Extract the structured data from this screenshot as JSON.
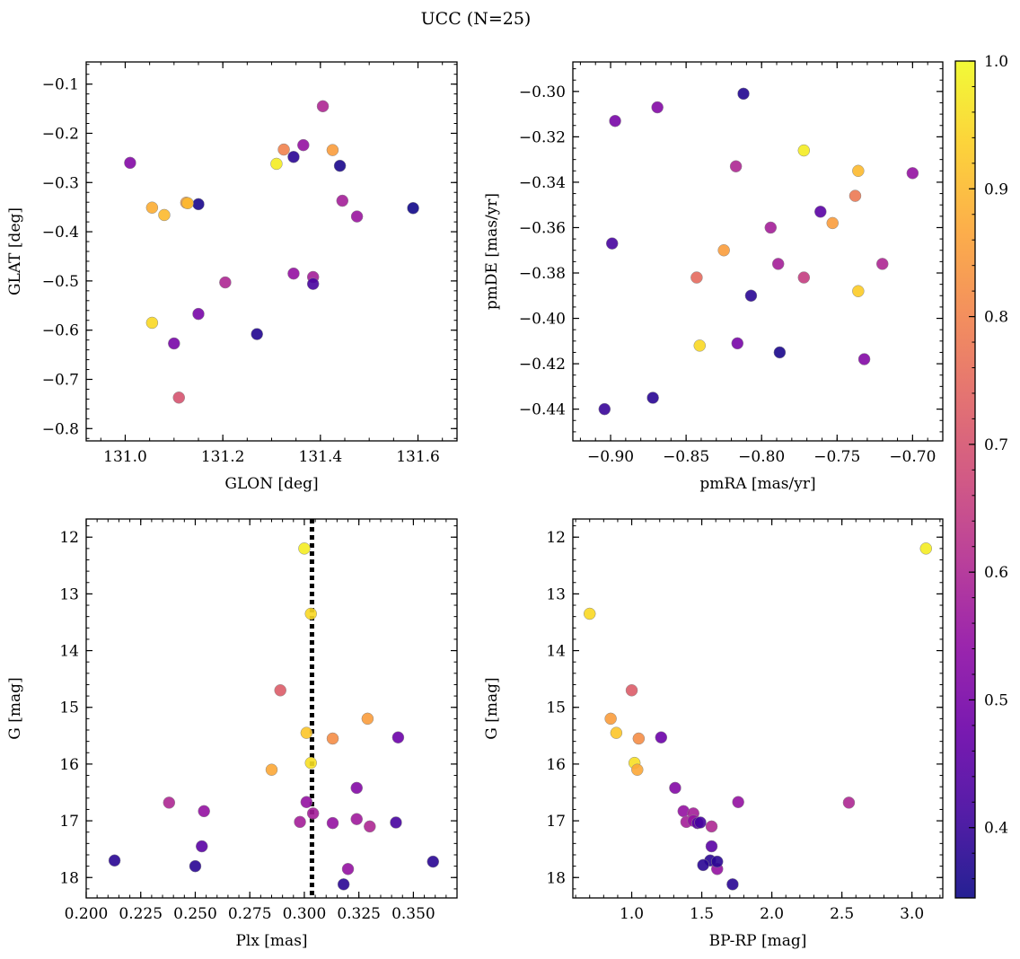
{
  "title": "UCC (N=25)",
  "colorbar": {
    "min": 0.345,
    "max": 1.0,
    "ticks": [
      0.4,
      0.5,
      0.6,
      0.7,
      0.8,
      0.9,
      1.0
    ],
    "tick_labels": [
      "0.4",
      "0.5",
      "0.6",
      "0.7",
      "0.8",
      "0.9",
      "1.0"
    ],
    "colormap": "plasma"
  },
  "chart_data": [
    {
      "type": "scatter",
      "xlabel": "GLON [deg]",
      "ylabel": "GLAT [deg]",
      "xlim": [
        130.92,
        131.68
      ],
      "ylim": [
        -0.825,
        -0.055
      ],
      "y_inverted": false,
      "xticks": [
        131.0,
        131.2,
        131.4,
        131.6
      ],
      "xtick_labels": [
        "131.0",
        "131.2",
        "131.4",
        "131.6"
      ],
      "yticks": [
        -0.8,
        -0.7,
        -0.6,
        -0.5,
        -0.4,
        -0.3,
        -0.2,
        -0.1
      ],
      "ytick_labels": [
        "−0.8",
        "−0.7",
        "−0.6",
        "−0.5",
        "−0.4",
        "−0.3",
        "−0.2",
        "−0.1"
      ],
      "points": [
        {
          "x": 131.01,
          "y": -0.26,
          "c": 0.52
        },
        {
          "x": 131.055,
          "y": -0.351,
          "c": 0.88
        },
        {
          "x": 131.08,
          "y": -0.366,
          "c": 0.9
        },
        {
          "x": 131.125,
          "y": -0.341,
          "c": 0.85
        },
        {
          "x": 131.15,
          "y": -0.344,
          "c": 0.36
        },
        {
          "x": 131.055,
          "y": -0.585,
          "c": 0.95
        },
        {
          "x": 131.1,
          "y": -0.627,
          "c": 0.5
        },
        {
          "x": 131.15,
          "y": -0.567,
          "c": 0.5
        },
        {
          "x": 131.11,
          "y": -0.737,
          "c": 0.7
        },
        {
          "x": 131.205,
          "y": -0.503,
          "c": 0.6
        },
        {
          "x": 131.27,
          "y": -0.608,
          "c": 0.37
        },
        {
          "x": 131.31,
          "y": -0.262,
          "c": 0.98
        },
        {
          "x": 131.325,
          "y": -0.233,
          "c": 0.8
        },
        {
          "x": 131.345,
          "y": -0.248,
          "c": 0.38
        },
        {
          "x": 131.365,
          "y": -0.224,
          "c": 0.55
        },
        {
          "x": 131.345,
          "y": -0.485,
          "c": 0.55
        },
        {
          "x": 131.385,
          "y": -0.492,
          "c": 0.58
        },
        {
          "x": 131.385,
          "y": -0.506,
          "c": 0.42
        },
        {
          "x": 131.405,
          "y": -0.145,
          "c": 0.6
        },
        {
          "x": 131.425,
          "y": -0.234,
          "c": 0.85
        },
        {
          "x": 131.44,
          "y": -0.266,
          "c": 0.36
        },
        {
          "x": 131.445,
          "y": -0.337,
          "c": 0.58
        },
        {
          "x": 131.475,
          "y": -0.369,
          "c": 0.56
        },
        {
          "x": 131.59,
          "y": -0.352,
          "c": 0.35
        },
        {
          "x": 131.128,
          "y": -0.342,
          "c": 0.9
        }
      ]
    },
    {
      "type": "scatter",
      "xlabel": "pmRA [mas/yr]",
      "ylabel": "pmDE [mas/yr]",
      "xlim": [
        -0.925,
        -0.68
      ],
      "ylim": [
        -0.454,
        -0.287
      ],
      "y_inverted": false,
      "xticks": [
        -0.9,
        -0.85,
        -0.8,
        -0.75,
        -0.7
      ],
      "xtick_labels": [
        "−0.90",
        "−0.85",
        "−0.80",
        "−0.75",
        "−0.70"
      ],
      "yticks": [
        -0.44,
        -0.42,
        -0.4,
        -0.38,
        -0.36,
        -0.34,
        -0.32,
        -0.3
      ],
      "ytick_labels": [
        "−0.44",
        "−0.42",
        "−0.40",
        "−0.38",
        "−0.36",
        "−0.34",
        "−0.32",
        "−0.30"
      ],
      "points": [
        {
          "x": -0.812,
          "y": -0.301,
          "c": 0.37
        },
        {
          "x": -0.897,
          "y": -0.313,
          "c": 0.5
        },
        {
          "x": -0.869,
          "y": -0.307,
          "c": 0.52
        },
        {
          "x": -0.772,
          "y": -0.326,
          "c": 0.98
        },
        {
          "x": -0.736,
          "y": -0.335,
          "c": 0.9
        },
        {
          "x": -0.7,
          "y": -0.336,
          "c": 0.55
        },
        {
          "x": -0.817,
          "y": -0.333,
          "c": 0.6
        },
        {
          "x": -0.738,
          "y": -0.346,
          "c": 0.78
        },
        {
          "x": -0.761,
          "y": -0.353,
          "c": 0.45
        },
        {
          "x": -0.753,
          "y": -0.358,
          "c": 0.85
        },
        {
          "x": -0.794,
          "y": -0.36,
          "c": 0.58
        },
        {
          "x": -0.899,
          "y": -0.367,
          "c": 0.42
        },
        {
          "x": -0.825,
          "y": -0.37,
          "c": 0.85
        },
        {
          "x": -0.789,
          "y": -0.376,
          "c": 0.58
        },
        {
          "x": -0.72,
          "y": -0.376,
          "c": 0.6
        },
        {
          "x": -0.843,
          "y": -0.382,
          "c": 0.75
        },
        {
          "x": -0.772,
          "y": -0.382,
          "c": 0.65
        },
        {
          "x": -0.736,
          "y": -0.388,
          "c": 0.93
        },
        {
          "x": -0.807,
          "y": -0.39,
          "c": 0.38
        },
        {
          "x": -0.841,
          "y": -0.412,
          "c": 0.95
        },
        {
          "x": -0.816,
          "y": -0.411,
          "c": 0.5
        },
        {
          "x": -0.788,
          "y": -0.415,
          "c": 0.36
        },
        {
          "x": -0.732,
          "y": -0.418,
          "c": 0.52
        },
        {
          "x": -0.872,
          "y": -0.435,
          "c": 0.38
        },
        {
          "x": -0.904,
          "y": -0.44,
          "c": 0.4
        }
      ]
    },
    {
      "type": "scatter",
      "xlabel": "Plx [mas]",
      "ylabel": "G [mag]",
      "xlim": [
        0.2,
        0.37
      ],
      "ylim": [
        18.36,
        11.68
      ],
      "y_inverted": true,
      "xticks": [
        0.2,
        0.225,
        0.25,
        0.275,
        0.3,
        0.325,
        0.35
      ],
      "xtick_labels": [
        "0.200",
        "0.225",
        "0.250",
        "0.275",
        "0.300",
        "0.325",
        "0.350"
      ],
      "yticks": [
        12,
        13,
        14,
        15,
        16,
        17,
        18
      ],
      "ytick_labels": [
        "12",
        "13",
        "14",
        "15",
        "16",
        "17",
        "18"
      ],
      "vline": {
        "x": 0.3035,
        "style": "dotted"
      },
      "points": [
        {
          "x": 0.3,
          "y": 12.2,
          "c": 0.98
        },
        {
          "x": 0.303,
          "y": 13.35,
          "c": 0.95
        },
        {
          "x": 0.289,
          "y": 14.7,
          "c": 0.72
        },
        {
          "x": 0.329,
          "y": 15.2,
          "c": 0.85
        },
        {
          "x": 0.301,
          "y": 15.45,
          "c": 0.92
        },
        {
          "x": 0.313,
          "y": 15.55,
          "c": 0.82
        },
        {
          "x": 0.343,
          "y": 15.53,
          "c": 0.48
        },
        {
          "x": 0.303,
          "y": 15.98,
          "c": 0.96
        },
        {
          "x": 0.285,
          "y": 16.1,
          "c": 0.87
        },
        {
          "x": 0.324,
          "y": 16.42,
          "c": 0.52
        },
        {
          "x": 0.238,
          "y": 16.68,
          "c": 0.6
        },
        {
          "x": 0.301,
          "y": 16.67,
          "c": 0.55
        },
        {
          "x": 0.254,
          "y": 16.83,
          "c": 0.55
        },
        {
          "x": 0.304,
          "y": 16.87,
          "c": 0.58
        },
        {
          "x": 0.298,
          "y": 17.02,
          "c": 0.58
        },
        {
          "x": 0.313,
          "y": 17.04,
          "c": 0.55
        },
        {
          "x": 0.324,
          "y": 16.97,
          "c": 0.57
        },
        {
          "x": 0.33,
          "y": 17.1,
          "c": 0.6
        },
        {
          "x": 0.342,
          "y": 17.03,
          "c": 0.42
        },
        {
          "x": 0.253,
          "y": 17.45,
          "c": 0.45
        },
        {
          "x": 0.213,
          "y": 17.7,
          "c": 0.38
        },
        {
          "x": 0.25,
          "y": 17.8,
          "c": 0.38
        },
        {
          "x": 0.32,
          "y": 17.85,
          "c": 0.55
        },
        {
          "x": 0.359,
          "y": 17.72,
          "c": 0.38
        },
        {
          "x": 0.318,
          "y": 18.12,
          "c": 0.38
        }
      ]
    },
    {
      "type": "scatter",
      "xlabel": "BP-RP [mag]",
      "ylabel": "G [mag]",
      "xlim": [
        0.58,
        3.22
      ],
      "ylim": [
        18.36,
        11.68
      ],
      "y_inverted": true,
      "xticks": [
        1.0,
        1.5,
        2.0,
        2.5,
        3.0
      ],
      "xtick_labels": [
        "1.0",
        "1.5",
        "2.0",
        "2.5",
        "3.0"
      ],
      "yticks": [
        12,
        13,
        14,
        15,
        16,
        17,
        18
      ],
      "ytick_labels": [
        "12",
        "13",
        "14",
        "15",
        "16",
        "17",
        "18"
      ],
      "points": [
        {
          "x": 3.1,
          "y": 12.2,
          "c": 0.98
        },
        {
          "x": 0.7,
          "y": 13.35,
          "c": 0.95
        },
        {
          "x": 1.0,
          "y": 14.7,
          "c": 0.72
        },
        {
          "x": 0.85,
          "y": 15.2,
          "c": 0.85
        },
        {
          "x": 0.89,
          "y": 15.45,
          "c": 0.92
        },
        {
          "x": 1.05,
          "y": 15.55,
          "c": 0.82
        },
        {
          "x": 1.21,
          "y": 15.53,
          "c": 0.48
        },
        {
          "x": 1.02,
          "y": 15.98,
          "c": 0.96
        },
        {
          "x": 1.04,
          "y": 16.1,
          "c": 0.87
        },
        {
          "x": 1.31,
          "y": 16.42,
          "c": 0.52
        },
        {
          "x": 2.55,
          "y": 16.68,
          "c": 0.6
        },
        {
          "x": 1.76,
          "y": 16.67,
          "c": 0.55
        },
        {
          "x": 1.37,
          "y": 16.83,
          "c": 0.55
        },
        {
          "x": 1.44,
          "y": 16.87,
          "c": 0.58
        },
        {
          "x": 1.39,
          "y": 17.02,
          "c": 0.58
        },
        {
          "x": 1.44,
          "y": 17.0,
          "c": 0.55
        },
        {
          "x": 1.47,
          "y": 17.04,
          "c": 0.45
        },
        {
          "x": 1.57,
          "y": 17.1,
          "c": 0.6
        },
        {
          "x": 1.49,
          "y": 17.03,
          "c": 0.42
        },
        {
          "x": 1.57,
          "y": 17.45,
          "c": 0.45
        },
        {
          "x": 1.56,
          "y": 17.7,
          "c": 0.38
        },
        {
          "x": 1.51,
          "y": 17.78,
          "c": 0.38
        },
        {
          "x": 1.61,
          "y": 17.85,
          "c": 0.55
        },
        {
          "x": 1.61,
          "y": 17.72,
          "c": 0.38
        },
        {
          "x": 1.72,
          "y": 18.12,
          "c": 0.38
        }
      ]
    }
  ]
}
